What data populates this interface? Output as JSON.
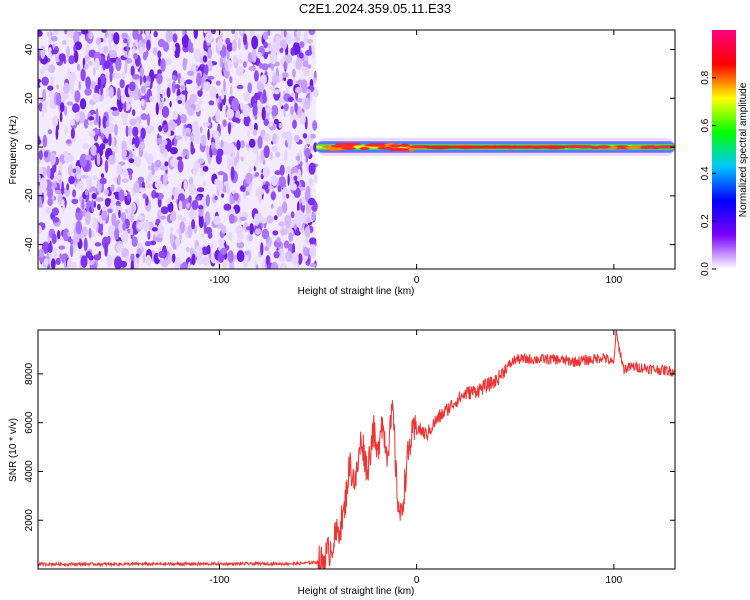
{
  "title": "C2E1.2024.359.05.11.E33",
  "chart_data": [
    {
      "type": "heatmap",
      "xlabel": "Height of straight line (km)",
      "ylabel": "Frequency (Hz)",
      "xlim": [
        -192,
        131
      ],
      "ylim": [
        -50,
        48
      ],
      "x_ticks": [
        -100,
        0,
        100
      ],
      "y_ticks": [
        -40,
        -20,
        0,
        20,
        40
      ],
      "colorbar": {
        "label": "Normalized spectral amplitude",
        "range": [
          0,
          1
        ],
        "ticks": [
          0.0,
          0.2,
          0.4,
          0.6,
          0.8
        ],
        "colors": [
          "#ffffff",
          "#7a00ff",
          "#0000ff",
          "#00c8ff",
          "#00ff00",
          "#ffff00",
          "#ff0000",
          "#ff0080"
        ]
      },
      "regions": [
        {
          "name": "noise",
          "x_range": [
            -192,
            -51
          ],
          "freq_range": [
            -50,
            48
          ],
          "amplitude_range": [
            0.0,
            0.15
          ]
        },
        {
          "name": "signal",
          "x_range": [
            -51,
            131
          ],
          "center_freq_hz": 0,
          "peak_amplitude": 0.9
        }
      ]
    },
    {
      "type": "line",
      "xlabel": "Height of straight line (km)",
      "ylabel": "SNR (10 * v/v)",
      "xlim": [
        -192,
        131
      ],
      "ylim": [
        0,
        9800
      ],
      "x_ticks": [
        -100,
        0,
        100
      ],
      "y_ticks": [
        2000,
        4000,
        6000,
        8000
      ],
      "color": "#ee3333",
      "x": [
        -192,
        -150,
        -100,
        -60,
        -48,
        -44,
        -40,
        -37,
        -34,
        -31,
        -28,
        -25,
        -22,
        -20,
        -18,
        -15,
        -12,
        -10,
        -8,
        -5,
        -3,
        0,
        5,
        10,
        15,
        20,
        25,
        30,
        35,
        40,
        45,
        50,
        60,
        70,
        80,
        90,
        95,
        100,
        101,
        105,
        110,
        120,
        131
      ],
      "y": [
        200,
        200,
        210,
        220,
        300,
        800,
        1500,
        2200,
        4300,
        3500,
        5400,
        4000,
        5800,
        4500,
        6200,
        4800,
        6500,
        3200,
        2000,
        4300,
        5300,
        5800,
        5500,
        6100,
        6500,
        6900,
        7200,
        7300,
        7500,
        7700,
        8200,
        8600,
        8600,
        8600,
        8500,
        8600,
        8700,
        8400,
        9700,
        8200,
        8300,
        8200,
        8100
      ]
    }
  ]
}
